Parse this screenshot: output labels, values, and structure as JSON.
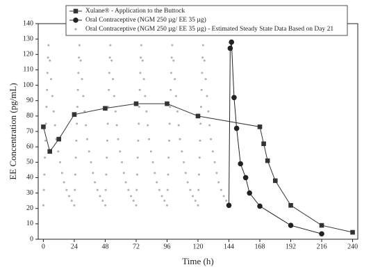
{
  "chart_data": {
    "type": "line",
    "x_label": "Time (h)",
    "y_label": "EE Concentration (pg/mL)",
    "xlim": [
      -4,
      244
    ],
    "ylim": [
      0,
      140
    ],
    "xticks": [
      0,
      24,
      48,
      72,
      96,
      120,
      144,
      168,
      192,
      216,
      240
    ],
    "yticks": [
      0,
      10,
      20,
      30,
      40,
      50,
      60,
      70,
      80,
      90,
      100,
      110,
      120,
      130,
      140
    ],
    "series": [
      {
        "name": "Xulane® - Application to the Buttock",
        "color": "#333333",
        "mode": "lines+markers",
        "marker": "square",
        "x": [
          0,
          5,
          12,
          24,
          48,
          72,
          96,
          120,
          168,
          171,
          174,
          180,
          192,
          216,
          240
        ],
        "values": [
          73,
          57,
          65,
          81,
          85,
          88,
          88,
          80,
          73,
          62,
          51,
          38,
          22,
          9,
          4.5
        ]
      },
      {
        "name": "Oral Contraceptive (NGM 250 µg/ EE 35 µg)",
        "color": "#222222",
        "mode": "lines+markers",
        "marker": "circle",
        "x": [
          144,
          145,
          146,
          148,
          150,
          153,
          157,
          160,
          168,
          192,
          216
        ],
        "values": [
          22,
          124,
          128,
          92,
          72,
          49,
          40,
          30,
          21.5,
          9,
          3.5
        ]
      },
      {
        "name": "Oral Contraceptive (NGM 250 µg/ EE 35 µg) - Estimated Steady State Data Based on Day 21",
        "color": "#b0b0b0",
        "mode": "markers",
        "marker": "dot",
        "x": [
          0,
          0.4,
          0.8,
          1.2,
          1.6,
          2,
          2.4,
          2.8,
          3.2,
          3.6,
          4,
          5,
          6,
          7,
          8,
          9,
          10,
          11.5,
          13,
          14.5,
          16,
          18,
          20,
          22,
          24,
          24.4,
          24.8,
          25.2,
          25.6,
          26,
          26.4,
          26.8,
          27.2,
          27.6,
          28,
          29,
          30,
          31,
          32,
          33,
          34,
          35.5,
          37,
          38.5,
          40,
          42,
          44,
          46,
          48,
          48.4,
          48.8,
          49.2,
          49.6,
          50,
          50.4,
          50.8,
          51.2,
          51.6,
          52,
          53,
          54,
          55,
          56,
          57,
          58,
          59.5,
          61,
          62.5,
          64,
          66,
          68,
          70,
          72,
          72.4,
          72.8,
          73.2,
          73.6,
          74,
          74.4,
          74.8,
          75.2,
          75.6,
          76,
          77,
          78,
          79,
          80,
          81,
          82,
          83.5,
          85,
          86.5,
          88,
          90,
          92,
          94,
          96,
          96.4,
          96.8,
          97.2,
          97.6,
          98,
          98.4,
          98.8,
          99.2,
          99.6,
          100,
          101,
          102,
          103,
          104,
          105,
          106,
          107.5,
          109,
          110.5,
          112,
          114,
          116,
          118,
          120,
          120.4,
          120.8,
          121.2,
          121.6,
          122,
          122.4,
          122.8,
          123.2,
          123.6,
          124,
          125,
          126,
          127,
          128,
          129,
          130,
          131.5,
          133,
          134.5,
          136,
          138,
          140,
          142
        ],
        "values": [
          22,
          32,
          42,
          53,
          64,
          75,
          86,
          97,
          108,
          118,
          126,
          116,
          104,
          93,
          83,
          74,
          65,
          57,
          50,
          43,
          37,
          32,
          28,
          25,
          22,
          32,
          42,
          53,
          64,
          75,
          86,
          97,
          108,
          118,
          126,
          116,
          104,
          93,
          83,
          74,
          65,
          57,
          50,
          43,
          37,
          32,
          28,
          25,
          22,
          32,
          42,
          53,
          64,
          75,
          86,
          97,
          108,
          118,
          126,
          116,
          104,
          93,
          83,
          74,
          65,
          57,
          50,
          43,
          37,
          32,
          28,
          25,
          22,
          32,
          42,
          53,
          64,
          75,
          86,
          97,
          108,
          118,
          126,
          116,
          104,
          93,
          83,
          74,
          65,
          57,
          50,
          43,
          37,
          32,
          28,
          25,
          22,
          32,
          42,
          53,
          64,
          75,
          86,
          97,
          108,
          118,
          126,
          116,
          104,
          93,
          83,
          74,
          65,
          57,
          50,
          43,
          37,
          32,
          28,
          25,
          22,
          32,
          42,
          53,
          64,
          75,
          86,
          97,
          108,
          118,
          126,
          116,
          104,
          93,
          83,
          74,
          65,
          57,
          50,
          43,
          37,
          32,
          28,
          25
        ]
      }
    ],
    "legend": "top-left"
  }
}
